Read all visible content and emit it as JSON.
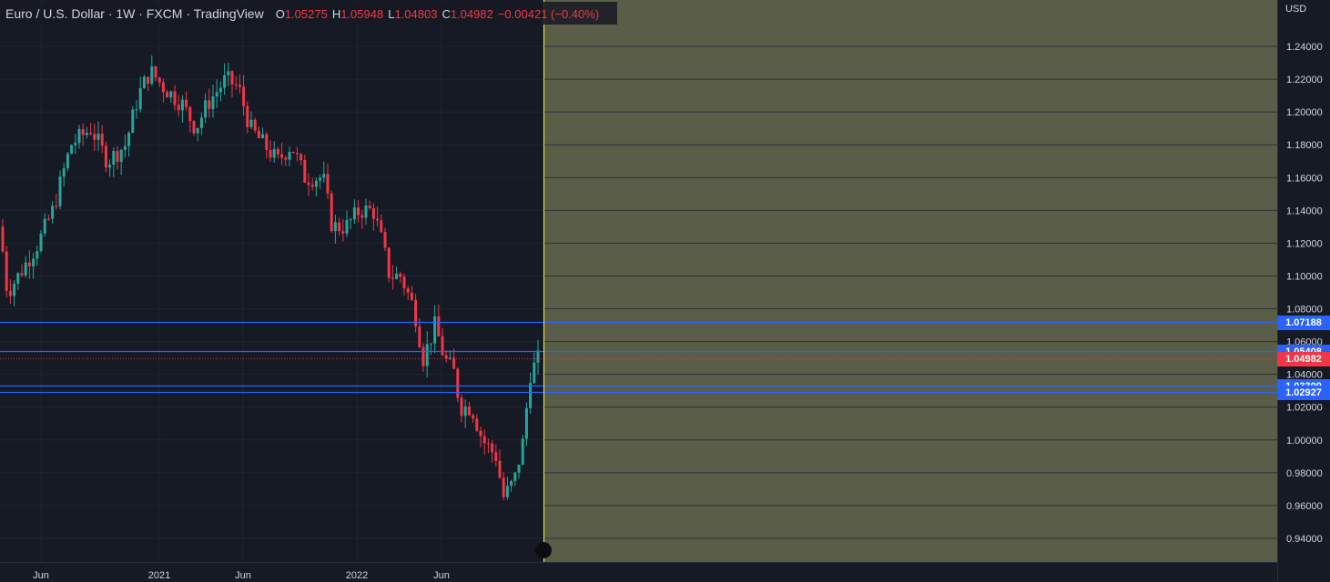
{
  "header": {
    "title": "Euro / U.S. Dollar · 1W · FXCM · TradingView",
    "open_label": "O",
    "open": "1.05275",
    "high_label": "H",
    "high": "1.05948",
    "low_label": "L",
    "low": "1.04803",
    "close_label": "C",
    "close": "1.04982",
    "change": "−0.00421 (−0.40%)"
  },
  "price_axis": {
    "unit": "USD",
    "ticks": [
      "1.24000",
      "1.22000",
      "1.20000",
      "1.18000",
      "1.16000",
      "1.14000",
      "1.12000",
      "1.10000",
      "1.08000",
      "1.06000",
      "1.04000",
      "1.02000",
      "1.00000",
      "0.98000",
      "0.96000",
      "0.94000"
    ]
  },
  "time_axis": {
    "ticks": [
      "Jun",
      "2021",
      "Jun",
      "2022",
      "Jun"
    ]
  },
  "horizontal_lines": [
    {
      "price": 1.07188,
      "label": "1.07188",
      "color": "#2962ff"
    },
    {
      "price": 1.05408,
      "label": "1.05408",
      "color": "#2962ff"
    },
    {
      "price": 1.03309,
      "label": "1.03309",
      "color": "#2962ff"
    },
    {
      "price": 1.02927,
      "label": "1.02927",
      "color": "#2962ff"
    }
  ],
  "last_price": {
    "price": 1.04982,
    "label": "1.04982",
    "color": "#f23645"
  },
  "colors": {
    "up": "#26a69a",
    "down": "#f23645",
    "replay_region": "#5a5e48",
    "replay_line": "#f5f346",
    "grid": "#232735",
    "axis_text": "#d1d4dc"
  },
  "chart_data": {
    "type": "candlestick",
    "symbol": "EURUSD",
    "interval": "1W",
    "ylim": [
      0.93,
      1.255
    ],
    "candles": []
  }
}
